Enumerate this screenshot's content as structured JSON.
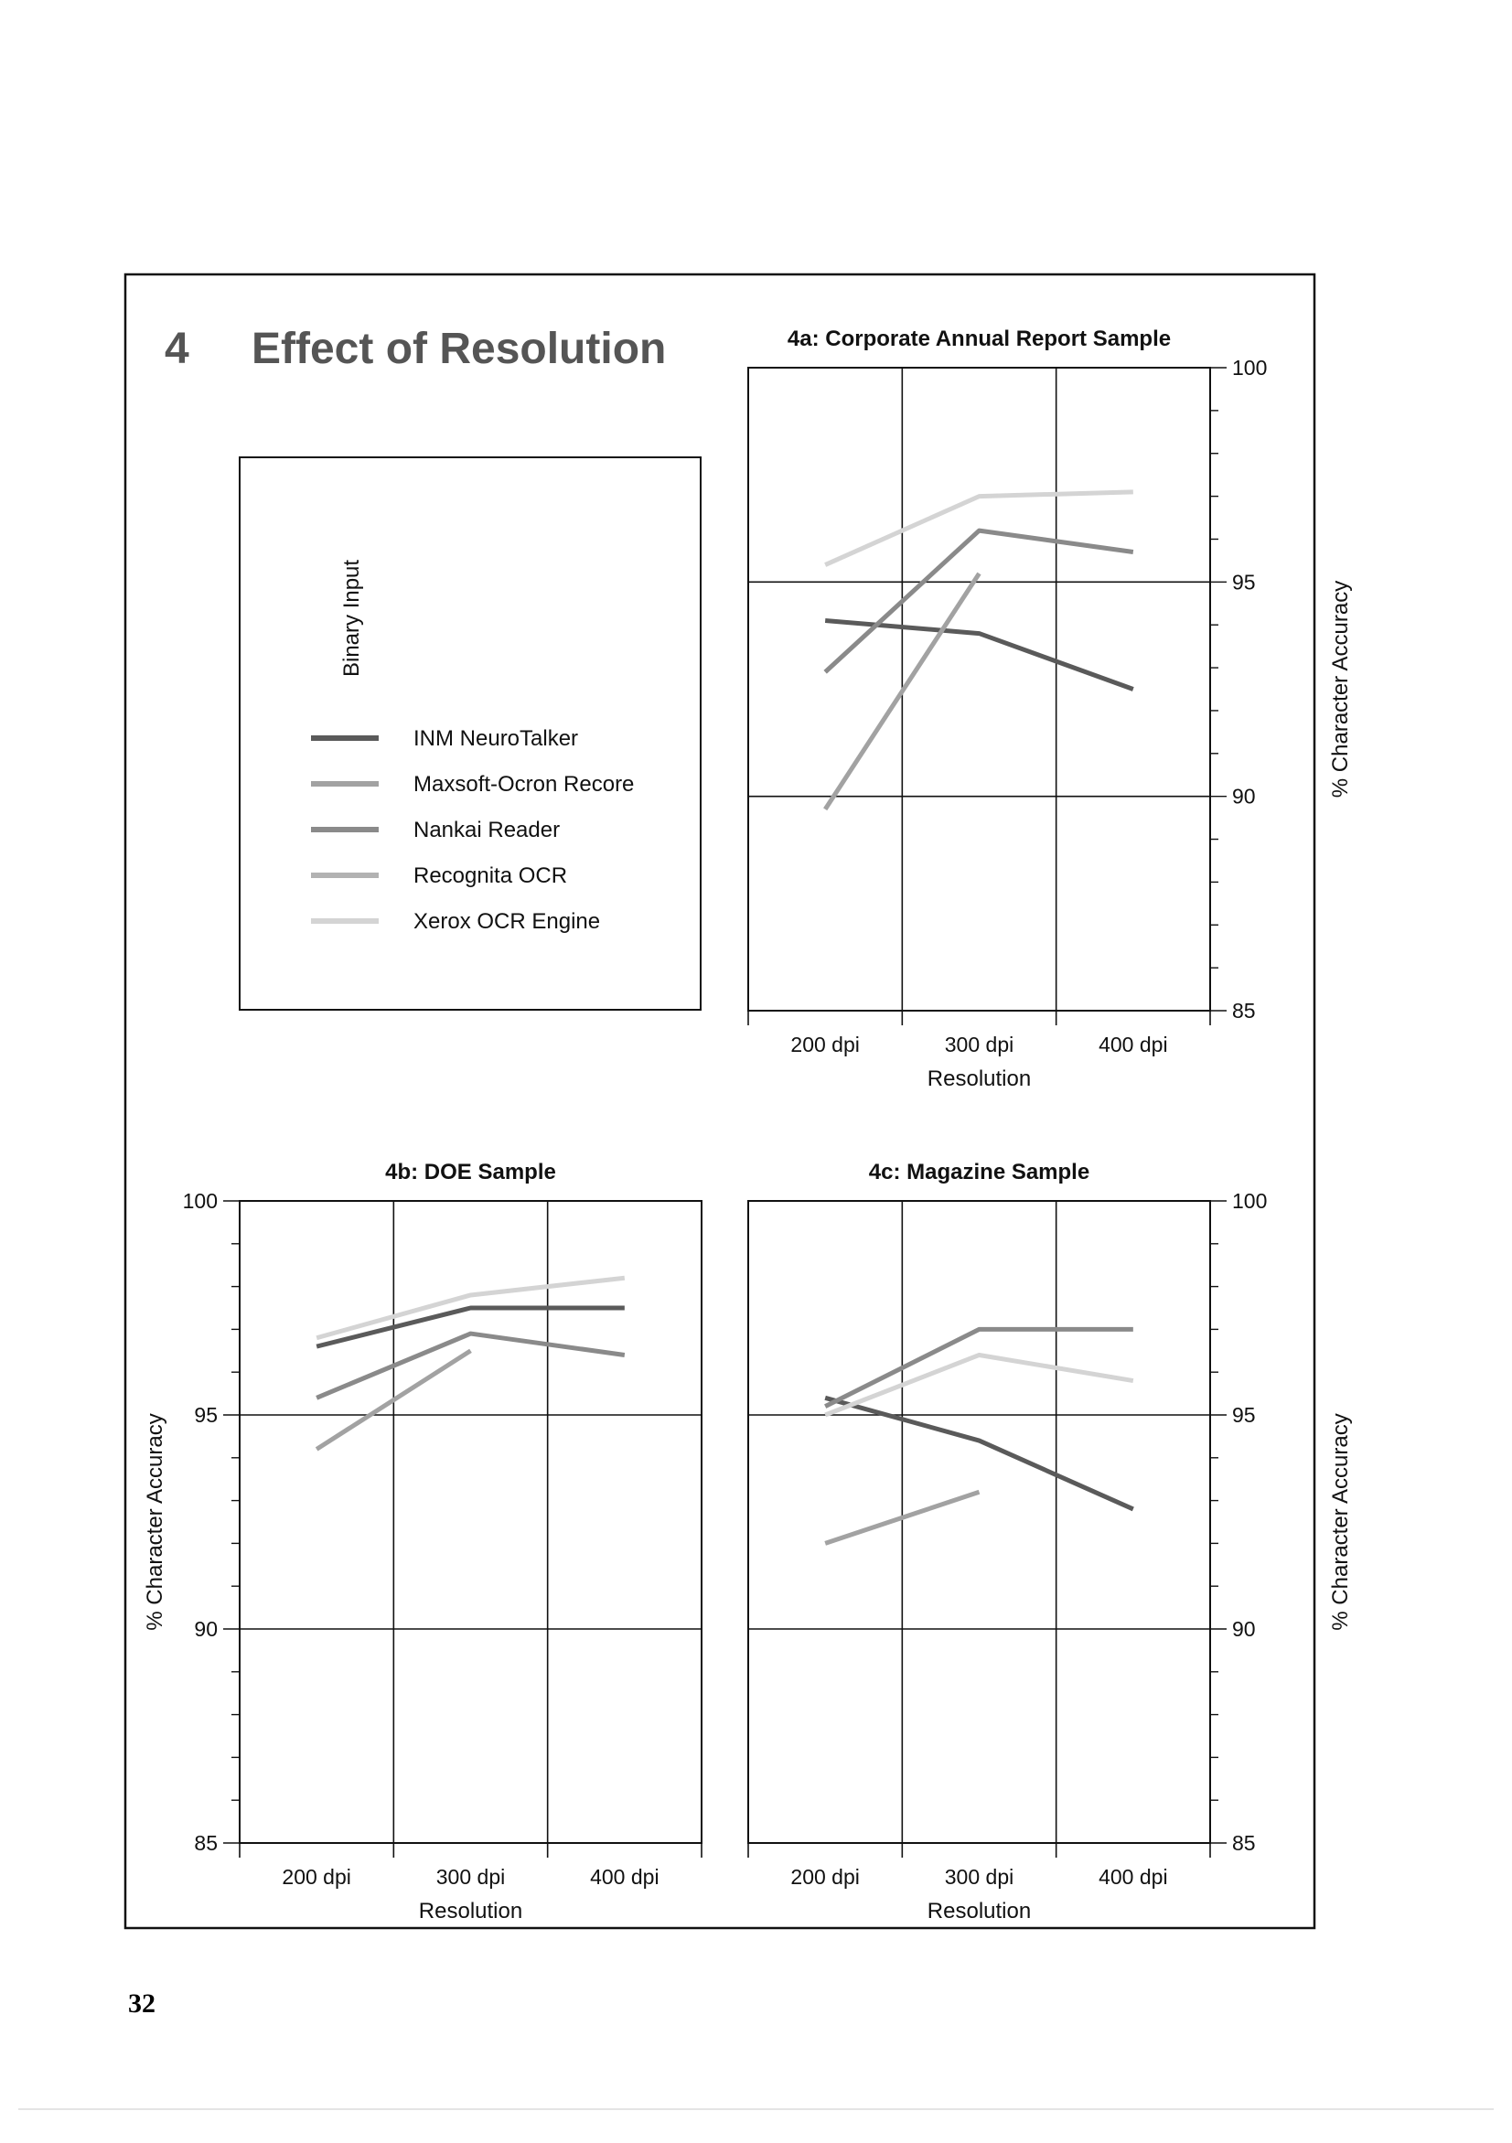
{
  "section": {
    "number": "4",
    "title": "Effect of Resolution"
  },
  "page_number": "32",
  "legend": {
    "heading": "Binary Input",
    "items": [
      {
        "label": "INM NeuroTalker",
        "color": "#5a5a5a"
      },
      {
        "label": "Maxsoft-Ocron Recore",
        "color": "#a2a2a2"
      },
      {
        "label": "Nankai Reader",
        "color": "#8a8a8a"
      },
      {
        "label": "Recognita OCR",
        "color": "#b2b2b2"
      },
      {
        "label": "Xerox OCR Engine",
        "color": "#d4d4d4"
      }
    ]
  },
  "chart_data": [
    {
      "type": "line",
      "title": "4a: Corporate Annual Report Sample",
      "xlabel": "Resolution",
      "ylabel": "% Character Accuracy",
      "categories": [
        "200 dpi",
        "300 dpi",
        "400 dpi"
      ],
      "yticks": [
        "85",
        "90",
        "95",
        "100"
      ],
      "ylim": [
        85,
        100
      ],
      "y_axis_side": "right",
      "grid": true,
      "series": [
        {
          "name": "INM NeuroTalker",
          "values": [
            94.1,
            93.8,
            92.5
          ]
        },
        {
          "name": "Maxsoft-Ocron Recore",
          "values": [
            89.7,
            95.2,
            null
          ]
        },
        {
          "name": "Nankai Reader",
          "values": [
            92.9,
            96.2,
            95.7
          ]
        },
        {
          "name": "Recognita OCR",
          "values": [
            null,
            null,
            null
          ]
        },
        {
          "name": "Xerox OCR Engine",
          "values": [
            95.4,
            97.0,
            97.1
          ]
        }
      ]
    },
    {
      "type": "line",
      "title": "4b: DOE Sample",
      "xlabel": "Resolution",
      "ylabel": "% Character Accuracy",
      "categories": [
        "200 dpi",
        "300 dpi",
        "400 dpi"
      ],
      "yticks": [
        "85",
        "90",
        "95",
        "100"
      ],
      "ylim": [
        85,
        100
      ],
      "y_axis_side": "left",
      "grid": true,
      "series": [
        {
          "name": "INM NeuroTalker",
          "values": [
            96.6,
            97.5,
            97.5
          ]
        },
        {
          "name": "Maxsoft-Ocron Recore",
          "values": [
            94.2,
            96.5,
            null
          ]
        },
        {
          "name": "Nankai Reader",
          "values": [
            95.4,
            96.9,
            96.4
          ]
        },
        {
          "name": "Recognita OCR",
          "values": [
            null,
            null,
            null
          ]
        },
        {
          "name": "Xerox OCR Engine",
          "values": [
            96.8,
            97.8,
            98.2
          ]
        }
      ]
    },
    {
      "type": "line",
      "title": "4c: Magazine Sample",
      "xlabel": "Resolution",
      "ylabel": "% Character Accuracy",
      "categories": [
        "200 dpi",
        "300 dpi",
        "400 dpi"
      ],
      "yticks": [
        "85",
        "90",
        "95",
        "100"
      ],
      "ylim": [
        85,
        100
      ],
      "y_axis_side": "right",
      "grid": true,
      "series": [
        {
          "name": "INM NeuroTalker",
          "values": [
            95.4,
            94.4,
            92.8
          ]
        },
        {
          "name": "Maxsoft-Ocron Recore",
          "values": [
            92.0,
            93.2,
            null
          ]
        },
        {
          "name": "Nankai Reader",
          "values": [
            95.2,
            97.0,
            97.0
          ]
        },
        {
          "name": "Recognita OCR",
          "values": [
            null,
            null,
            null
          ]
        },
        {
          "name": "Xerox OCR Engine",
          "values": [
            95.0,
            96.4,
            95.8
          ]
        }
      ]
    }
  ]
}
